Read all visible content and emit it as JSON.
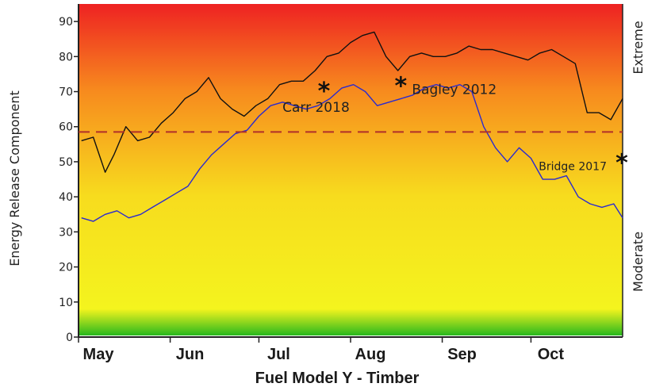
{
  "chart_data": {
    "type": "line",
    "title": "",
    "ylabel": "Energy Release Component",
    "xlabel": "Fuel Model Y - Timber",
    "ylim": [
      0,
      95
    ],
    "yticks": [
      0,
      10,
      20,
      30,
      40,
      50,
      60,
      70,
      80,
      90
    ],
    "months": [
      "May",
      "Jun",
      "Jul",
      "Aug",
      "Sep",
      "Oct"
    ],
    "right_labels": {
      "top": "Extreme",
      "bottom": "Moderate"
    },
    "gradient_colors": [
      "#ee2222",
      "#f78a1e",
      "#f7dc1e",
      "#f4f41e",
      "#28b81e"
    ],
    "threshold": {
      "value": 58.5,
      "color": "#b0302a"
    },
    "series": [
      {
        "color": "#111111",
        "x": [
          1,
          5,
          9,
          12,
          16,
          20,
          24,
          28,
          32,
          36,
          40,
          44,
          48,
          52,
          56,
          60,
          64,
          68,
          72,
          76,
          80,
          84,
          88,
          92,
          96,
          100,
          104,
          108,
          112,
          116,
          120,
          124,
          128,
          132,
          136,
          140,
          144,
          148,
          152,
          156,
          160,
          164,
          168,
          172,
          176,
          180,
          184
        ],
        "y": [
          56,
          57,
          47,
          52,
          60,
          56,
          57,
          61,
          64,
          68,
          70,
          74,
          68,
          65,
          63,
          66,
          68,
          72,
          73,
          73,
          76,
          80,
          81,
          84,
          86,
          87,
          80,
          76,
          80,
          81,
          80,
          80,
          81,
          83,
          82,
          82,
          81,
          80,
          79,
          81,
          82,
          80,
          78,
          64,
          64,
          62,
          68
        ]
      },
      {
        "color": "#2a2ad0",
        "x": [
          1,
          5,
          9,
          13,
          17,
          21,
          25,
          29,
          33,
          37,
          41,
          45,
          49,
          53,
          57,
          61,
          65,
          69,
          73,
          77,
          81,
          85,
          89,
          93,
          97,
          101,
          105,
          109,
          113,
          117,
          121,
          125,
          129,
          133,
          137,
          141,
          145,
          149,
          153,
          157,
          161,
          165,
          169,
          173,
          177,
          181,
          184
        ],
        "y": [
          34,
          33,
          35,
          36,
          34,
          35,
          37,
          39,
          41,
          43,
          48,
          52,
          55,
          58,
          59,
          63,
          66,
          67,
          66,
          65,
          66,
          68,
          71,
          72,
          70,
          66,
          67,
          68,
          69,
          71,
          72,
          71,
          72,
          70,
          60,
          54,
          50,
          54,
          51,
          45,
          45,
          46,
          40,
          38,
          37,
          38,
          34
        ]
      }
    ],
    "annotations": [
      {
        "label": "Carr 2018",
        "x": 83,
        "y": 71.5
      },
      {
        "label": "Bagley 2012",
        "x": 109,
        "y": 73
      },
      {
        "label": "Bridge 2017",
        "x": 184,
        "y": 51
      }
    ]
  }
}
